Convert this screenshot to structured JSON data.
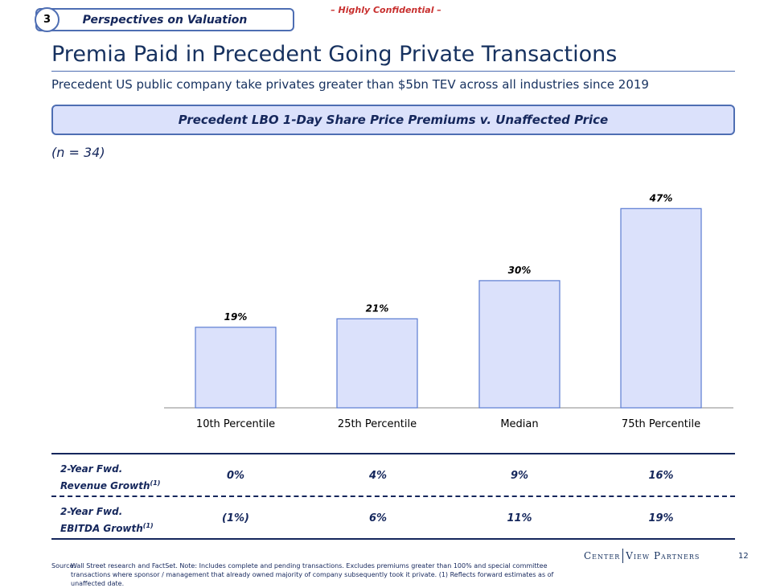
{
  "header": {
    "section_number": "3",
    "section_title": "Perspectives on Valuation",
    "confidential": "– Highly Confidential –",
    "title": "Premia Paid in Precedent Going Private Transactions",
    "subtitle": "Precedent US public company take privates greater than $5bn TEV across all industries since 2019"
  },
  "banner": "Precedent LBO 1-Day Share Price Premiums v. Unaffected Price",
  "sample_size": "(n = 34)",
  "chart_data": {
    "type": "bar",
    "title": "Precedent LBO 1-Day Share Price Premiums v. Unaffected Price",
    "categories": [
      "10th Percentile",
      "25th Percentile",
      "Median",
      "75th Percentile"
    ],
    "values": [
      19,
      21,
      30,
      47
    ],
    "value_labels": [
      "19%",
      "21%",
      "30%",
      "47%"
    ],
    "xlabel": "",
    "ylabel": "",
    "ylim": [
      0,
      50
    ],
    "grid": false,
    "unit": "%"
  },
  "growth_table": {
    "rows": [
      {
        "label_line1": "2-Year Fwd.",
        "label_line2": "Revenue Growth",
        "footnote": "(1)",
        "values": [
          "0%",
          "4%",
          "9%",
          "16%"
        ]
      },
      {
        "label_line1": "2-Year Fwd.",
        "label_line2": "EBITDA Growth",
        "footnote": "(1)",
        "values": [
          "(1%)",
          "6%",
          "11%",
          "19%"
        ]
      }
    ]
  },
  "footer": {
    "source_label": "Source:",
    "source_text": "Wall Street research and FactSet. Note: Includes complete and pending transactions. Excludes premiums greater than 100% and special committee transactions where sponsor / management that already owned majority of company subsequently took it private. (1) Reflects forward estimates as of unaffected date.",
    "logo_left": "Center",
    "logo_right": "View Partners",
    "page_number": "12"
  },
  "colors": {
    "navy": "#15275c",
    "accent_blue": "#4e6eb3",
    "bar_fill": "#dbe1fb",
    "bar_stroke": "#5a7bd1",
    "confidential_red": "#c8302f"
  }
}
